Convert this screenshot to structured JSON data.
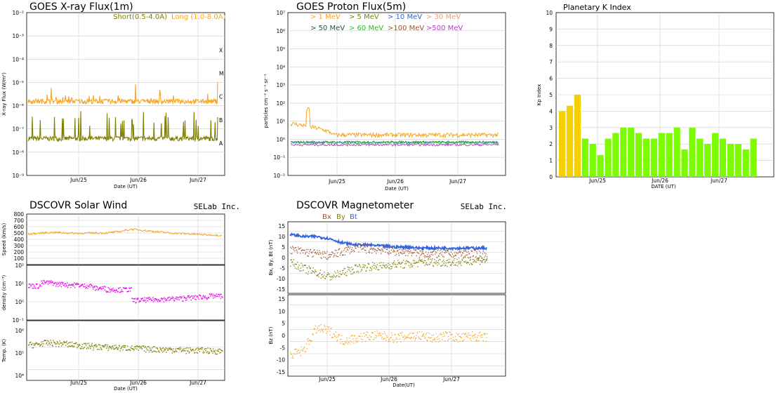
{
  "colors": {
    "short": "#808000",
    "long": "#f5a623",
    "p1": "#f5a623",
    "p5": "#808000",
    "p10": "#3366cc",
    "p30": "#e8a070",
    "p50": "#2f4f4f",
    "p60": "#22bb22",
    "p100": "#a0522d",
    "p500": "#b040c0",
    "kp_yellow": "#f5d000",
    "kp_green": "#7cfc00",
    "speed": "#f5a623",
    "density": "#ee00ee",
    "temp": "#808000",
    "bx": "#a0522d",
    "by": "#808000",
    "bt": "#3366dd",
    "bz": "#f5a623"
  },
  "chart_data": [
    {
      "type": "line",
      "title": "GOES X-ray Flux(1m)",
      "ylabel": "X-ray Flux (W/m²)",
      "xlabel": "Date (UT)",
      "y_scale": "log",
      "ylim": [
        1e-09,
        0.01
      ],
      "y_ticks": [
        "10⁻²",
        "10⁻³",
        "10⁻⁴",
        "10⁻⁵",
        "10⁻⁶",
        "10⁻⁷",
        "10⁻⁸",
        "10⁻⁹"
      ],
      "class_labels": [
        "X",
        "M",
        "C",
        "B",
        "A"
      ],
      "x_ticks": [
        "Jun/25",
        "Jun/26",
        "Jun/27"
      ],
      "legend": [
        "Short(0.5-4.0A)",
        "Long (1.0-8.0A)"
      ],
      "series": [
        {
          "name": "Short(0.5-4.0A)",
          "baseline": 3e-08,
          "peaks": [
            3e-07,
            2e-07,
            4e-07,
            3e-07,
            6e-07,
            5e-07,
            4e-07,
            3e-07
          ]
        },
        {
          "name": "Long (1.0-8.0A)",
          "baseline": 1.2e-06,
          "peaks": [
            3e-06,
            2.5e-06,
            4e-06,
            3e-06,
            1.5e-05,
            6e-06,
            4e-06,
            3e-06
          ]
        }
      ]
    },
    {
      "type": "line",
      "title": "GOES Proton Flux(5m)",
      "ylabel": "particles cm⁻² s⁻¹ sr⁻¹",
      "xlabel": "Date (UT)",
      "y_scale": "log",
      "ylim": [
        0.01,
        10000000
      ],
      "y_ticks": [
        "10⁷",
        "10⁶",
        "10⁵",
        "10⁴",
        "10³",
        "10²",
        "10¹",
        "10⁰",
        "10⁻¹",
        "10⁻²"
      ],
      "x_ticks": [
        "Jun/25",
        "Jun/26",
        "Jun/27"
      ],
      "legend_row1": [
        ">  1 MeV",
        ">  5 MeV",
        "> 10 MeV",
        "> 30 MeV"
      ],
      "legend_row2": [
        "> 50 MeV",
        "> 60 MeV",
        ">100 MeV",
        ">500 MeV"
      ],
      "series": [
        {
          "name": ">  1 MeV",
          "baseline": 2.0,
          "peak": 60
        },
        {
          "name": ">500 MeV",
          "baseline": 0.5
        }
      ]
    },
    {
      "type": "bar",
      "title": "Planetary K Index",
      "ylabel": "Kp Index",
      "xlabel": "DATE (UT)",
      "ylim": [
        0,
        10
      ],
      "y_ticks": [
        "10",
        "9",
        "8",
        "7",
        "6",
        "5",
        "4",
        "3",
        "2",
        "1",
        "0"
      ],
      "x_ticks": [
        "Jun/25",
        "Jun/26",
        "Jun/27"
      ],
      "values": [
        4.0,
        4.33,
        5.0,
        2.33,
        2.0,
        1.33,
        2.33,
        2.67,
        3.0,
        3.0,
        2.67,
        2.33,
        2.33,
        2.67,
        2.67,
        3.0,
        1.67,
        3.0,
        2.33,
        2.0,
        2.67,
        2.33,
        2.0,
        2.0,
        1.67,
        2.33
      ]
    },
    {
      "type": "line",
      "title": "DSCOVR Solar Wind",
      "brand": "SELab Inc.",
      "xlabel": "Date (UT)",
      "x_ticks": [
        "Jun/25",
        "Jun/26",
        "Jun/27"
      ],
      "panels": [
        {
          "ylabel": "Speed (km/s)",
          "ylim": [
            0,
            800
          ],
          "y_ticks": [
            "800",
            "700",
            "600",
            "500",
            "400",
            "300",
            "200",
            "100"
          ],
          "series": {
            "name": "Speed",
            "values": [
              480,
              500,
              510,
              500,
              495,
              500,
              500,
              520,
              560,
              540,
              520,
              500,
              490,
              480,
              470,
              465
            ]
          }
        },
        {
          "ylabel": "density (cm⁻³)",
          "y_scale": "log",
          "ylim": [
            0.1,
            100
          ],
          "y_ticks": [
            "10²",
            "10¹",
            "10⁰",
            "10⁻¹"
          ],
          "series": {
            "name": "density",
            "values": [
              8,
              12,
              10,
              9,
              8,
              6,
              5,
              5,
              1.3,
              1.4,
              1.5,
              1.6,
              1.8,
              2,
              2.2,
              2.2
            ]
          }
        },
        {
          "ylabel": "Temp. (K)",
          "y_scale": "log",
          "ylim": [
            10000,
            1000000
          ],
          "y_ticks": [
            "10⁶",
            "10⁵",
            "10⁴"
          ],
          "series": {
            "name": "Temp",
            "values": [
              250000,
              300000,
              280000,
              250000,
              220000,
              200000,
              190000,
              180000,
              170000,
              160000,
              150000,
              150000,
              140000,
              140000,
              130000,
              130000
            ]
          }
        }
      ]
    },
    {
      "type": "line",
      "title": "DSCOVR Magnetometer",
      "brand": "SELab Inc.",
      "xlabel": "Date(UT)",
      "x_ticks": [
        "Jun/25",
        "Jun/26",
        "Jun/27"
      ],
      "legend": [
        "Bx",
        "By",
        "Bt"
      ],
      "panels": [
        {
          "ylabel": "Bx, By, Bt (nT)",
          "ylim": [
            -15,
            15
          ],
          "y_ticks": [
            "15",
            "10",
            "5",
            "0",
            "-5",
            "-10",
            "-15"
          ],
          "series": [
            {
              "name": "Bt",
              "values": [
                11,
                10,
                10,
                9,
                7,
                6,
                6,
                5.5,
                5,
                5,
                4.5,
                4.5,
                4.5,
                4.5,
                4.5,
                4.5
              ]
            },
            {
              "name": "Bx",
              "values": [
                4,
                3,
                2,
                1,
                3,
                5,
                4,
                4,
                3,
                3,
                2,
                2,
                2,
                2,
                2,
                1
              ]
            },
            {
              "name": "By",
              "values": [
                -2,
                -5,
                -7,
                -9,
                -7,
                -5,
                -4,
                -4,
                -3,
                -3,
                -2,
                -2,
                -2,
                -2,
                -1,
                -1
              ]
            }
          ]
        },
        {
          "ylabel": "Bz (nT)",
          "ylim": [
            -15,
            15
          ],
          "y_ticks": [
            "15",
            "10",
            "5",
            "0",
            "-5",
            "-10",
            "-15"
          ],
          "series": [
            {
              "name": "Bz",
              "values": [
                -8,
                -6,
                3,
                2,
                -2,
                -1,
                0,
                0,
                -1,
                0,
                0,
                -1,
                0,
                -1,
                0,
                -1
              ]
            }
          ]
        }
      ]
    }
  ]
}
